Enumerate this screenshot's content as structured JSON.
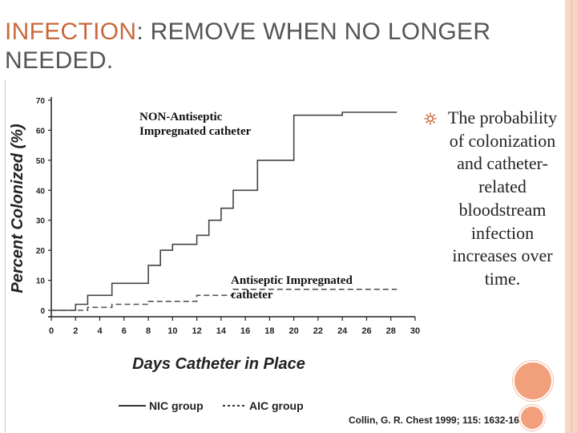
{
  "slide": {
    "title_accent": "INFECTION",
    "title_rest": ": REMOVE WHEN NO LONGER NEEDED.",
    "bullet_text": "The probability of colonization and catheter-related bloodstream infection increases over time.",
    "bullet_icon": "gear-icon",
    "citation": "Collin, G. R. Chest 1999; 115: 1632-1640",
    "colors": {
      "accent": "#c9683c",
      "decor": "#f2a07c"
    }
  },
  "chart_data": {
    "type": "line",
    "ylabel": "Percent Colonized (%)",
    "xlabel": "Days Catheter in Place",
    "x_ticks": [
      "0",
      "2",
      "4",
      "6",
      "8",
      "10",
      "12",
      "14",
      "16",
      "18",
      "20",
      "22",
      "24",
      "26",
      "28",
      "30"
    ],
    "y_ticks": [
      "0",
      "10",
      "20",
      "30",
      "40",
      "50",
      "60",
      "70"
    ],
    "xlim": [
      0,
      30
    ],
    "ylim": [
      0,
      70
    ],
    "annotations": [
      {
        "label": "NON-Antiseptic Impregnated catheter"
      },
      {
        "label": "Antiseptic Impregnated catheter"
      }
    ],
    "series": [
      {
        "name": "NIC group",
        "style": "solid",
        "points": [
          [
            0,
            0
          ],
          [
            2,
            0
          ],
          [
            2,
            2
          ],
          [
            3,
            2
          ],
          [
            3,
            5
          ],
          [
            5,
            5
          ],
          [
            5,
            9
          ],
          [
            8,
            9
          ],
          [
            8,
            15
          ],
          [
            9,
            15
          ],
          [
            9,
            20
          ],
          [
            10,
            20
          ],
          [
            10,
            22
          ],
          [
            12,
            22
          ],
          [
            12,
            25
          ],
          [
            13,
            25
          ],
          [
            13,
            30
          ],
          [
            14,
            30
          ],
          [
            14,
            34
          ],
          [
            15,
            34
          ],
          [
            15,
            40
          ],
          [
            17,
            40
          ],
          [
            17,
            50
          ],
          [
            20,
            50
          ],
          [
            20,
            65
          ],
          [
            24,
            65
          ],
          [
            24,
            66
          ],
          [
            28.5,
            66
          ]
        ]
      },
      {
        "name": "AIC group",
        "style": "dashed",
        "points": [
          [
            0,
            0
          ],
          [
            3,
            0
          ],
          [
            3,
            1
          ],
          [
            5,
            1
          ],
          [
            5,
            2
          ],
          [
            8,
            2
          ],
          [
            8,
            3
          ],
          [
            12,
            3
          ],
          [
            12,
            5
          ],
          [
            15,
            5
          ],
          [
            15,
            7
          ],
          [
            28.5,
            7
          ]
        ]
      }
    ]
  }
}
